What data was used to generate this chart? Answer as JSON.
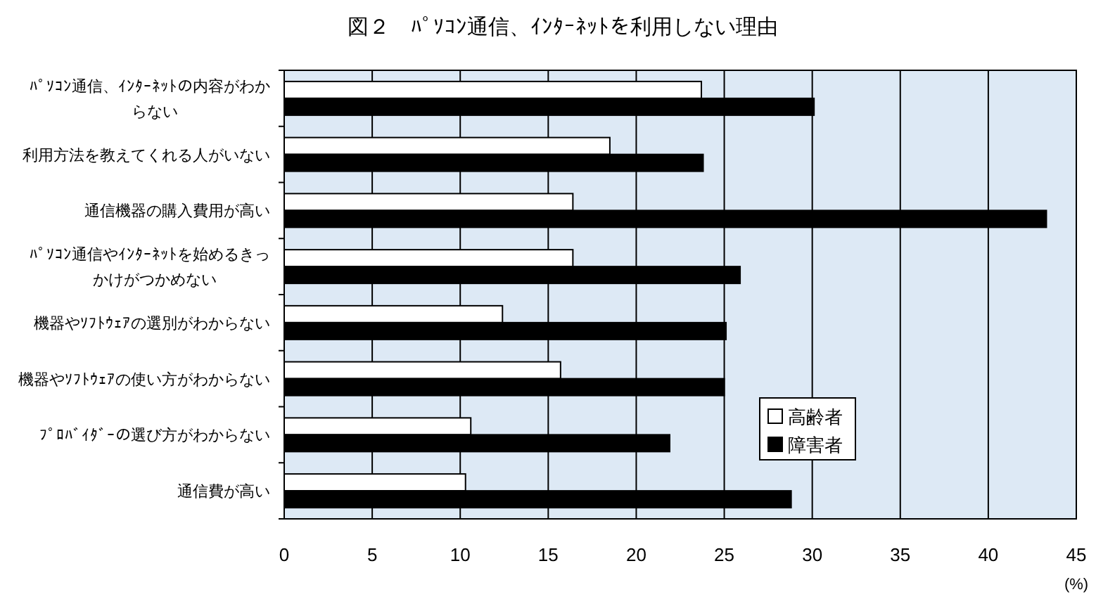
{
  "chart_data": {
    "type": "bar",
    "orientation": "horizontal",
    "title": "図２　ﾊﾟｿｺﾝ通信、ｲﾝﾀｰﾈｯﾄを利用しない理由",
    "xlabel": "(%)",
    "categories": [
      "ﾊﾟｿｺﾝ通信、ｲﾝﾀｰﾈｯﾄの内容がわからない",
      "利用方法を教えてくれる人がいない",
      "通信機器の購入費用が高い",
      "ﾊﾟｿｺﾝ通信やｲﾝﾀｰﾈｯﾄを始めるきっかけがつかめない",
      "機器やｿﾌﾄｳｪｱの選別がわからない",
      "機器やｿﾌﾄｳｪｱの使い方がわからない",
      "ﾌﾟﾛﾊﾞｲﾀﾞｰの選び方がわからない",
      "通信費が高い"
    ],
    "series": [
      {
        "name": "高齢者",
        "color": "#ffffff",
        "values": [
          23.7,
          18.5,
          16.4,
          16.4,
          12.4,
          15.7,
          10.6,
          10.3
        ]
      },
      {
        "name": "障害者",
        "color": "#000000",
        "values": [
          30.1,
          23.8,
          43.3,
          25.9,
          25.1,
          25.0,
          21.9,
          28.8
        ]
      }
    ],
    "xlim": [
      0,
      45
    ],
    "xticks": [
      0,
      5,
      10,
      15,
      20,
      25,
      30,
      35,
      40,
      45
    ],
    "grid": "x",
    "legend": "right"
  }
}
